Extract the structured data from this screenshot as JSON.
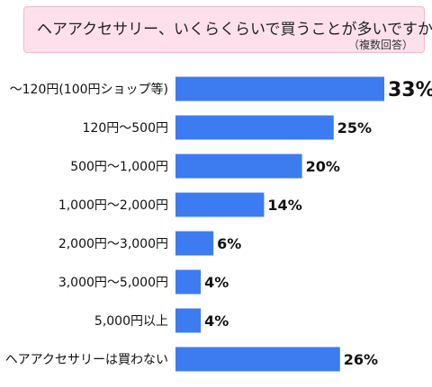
{
  "header": {
    "title": "ヘアアクセサリー、いくらくらいで買うことが多いですか？",
    "subtitle": "（複数回答）"
  },
  "colors": {
    "bar": "#3d7bf0",
    "title_bg": "#fde0ec"
  },
  "chart_data": {
    "type": "bar",
    "orientation": "horizontal",
    "title": "ヘアアクセサリー、いくらくらいで買うことが多いですか？",
    "subtitle": "（複数回答）",
    "categories": [
      "～120円(100円ショップ等)",
      "120円～500円",
      "500円～1,000円",
      "1,000円～2,000円",
      "2,000円～3,000円",
      "3,000円～5,000円",
      "5,000円以上",
      "ヘアアクセサリーは買わない"
    ],
    "values": [
      33,
      25,
      20,
      14,
      6,
      4,
      4,
      26
    ],
    "value_labels": [
      "33%",
      "25%",
      "20%",
      "14%",
      "6%",
      "4%",
      "4%",
      "26%"
    ],
    "xlim": [
      0,
      33
    ],
    "grid": false,
    "legend": "none"
  }
}
